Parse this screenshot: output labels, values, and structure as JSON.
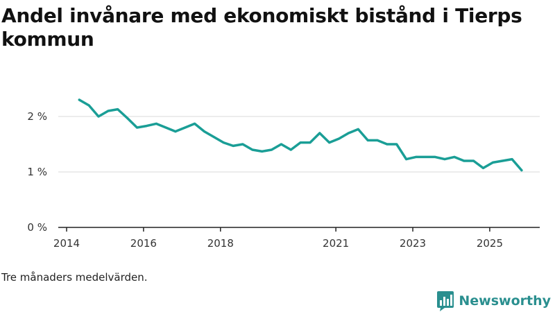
{
  "chart_data": {
    "type": "line",
    "title": "Andel invånare med ekonomiskt bistånd i Tierps kommun",
    "xlabel": "",
    "ylabel": "",
    "ylim": [
      0,
      2.6
    ],
    "xlim": [
      2014.0,
      2026.3
    ],
    "y_ticks": [
      {
        "value": 0,
        "label": "0 %"
      },
      {
        "value": 1,
        "label": "1 %"
      },
      {
        "value": 2,
        "label": "2 %"
      }
    ],
    "x_ticks": [
      {
        "value": 2014.0,
        "label": "2014"
      },
      {
        "value": 2016.0,
        "label": "2016"
      },
      {
        "value": 2018.0,
        "label": "2018"
      },
      {
        "value": 2021.0,
        "label": "2021"
      },
      {
        "value": 2023.0,
        "label": "2023"
      },
      {
        "value": 2025.0,
        "label": "2025"
      }
    ],
    "series": [
      {
        "name": "Andel invånare med ekonomiskt bistånd",
        "color": "#1a9e96",
        "points": [
          [
            2014.33,
            2.3
          ],
          [
            2014.58,
            2.2
          ],
          [
            2014.83,
            2.0
          ],
          [
            2015.08,
            2.1
          ],
          [
            2015.33,
            2.13
          ],
          [
            2015.58,
            1.97
          ],
          [
            2015.83,
            1.8
          ],
          [
            2016.08,
            1.83
          ],
          [
            2016.33,
            1.87
          ],
          [
            2016.58,
            1.8
          ],
          [
            2016.83,
            1.73
          ],
          [
            2017.08,
            1.8
          ],
          [
            2017.33,
            1.87
          ],
          [
            2017.58,
            1.73
          ],
          [
            2017.83,
            1.63
          ],
          [
            2018.08,
            1.53
          ],
          [
            2018.33,
            1.47
          ],
          [
            2018.58,
            1.5
          ],
          [
            2018.83,
            1.4
          ],
          [
            2019.08,
            1.37
          ],
          [
            2019.33,
            1.4
          ],
          [
            2019.58,
            1.5
          ],
          [
            2019.83,
            1.4
          ],
          [
            2020.08,
            1.53
          ],
          [
            2020.33,
            1.53
          ],
          [
            2020.58,
            1.7
          ],
          [
            2020.83,
            1.53
          ],
          [
            2021.08,
            1.6
          ],
          [
            2021.33,
            1.7
          ],
          [
            2021.58,
            1.77
          ],
          [
            2021.83,
            1.57
          ],
          [
            2022.08,
            1.57
          ],
          [
            2022.33,
            1.5
          ],
          [
            2022.58,
            1.5
          ],
          [
            2022.83,
            1.23
          ],
          [
            2023.08,
            1.27
          ],
          [
            2023.33,
            1.27
          ],
          [
            2023.58,
            1.27
          ],
          [
            2023.83,
            1.23
          ],
          [
            2024.08,
            1.27
          ],
          [
            2024.33,
            1.2
          ],
          [
            2024.58,
            1.2
          ],
          [
            2024.83,
            1.07
          ],
          [
            2025.08,
            1.17
          ],
          [
            2025.33,
            1.2
          ],
          [
            2025.58,
            1.23
          ],
          [
            2025.83,
            1.03
          ]
        ]
      }
    ],
    "grid": true
  },
  "footer": {
    "note": "Tre månaders medelvärden.",
    "brand": "Newsworthy",
    "brand_icon": "bar-chart-icon",
    "brand_color": "#2a8f8f"
  }
}
